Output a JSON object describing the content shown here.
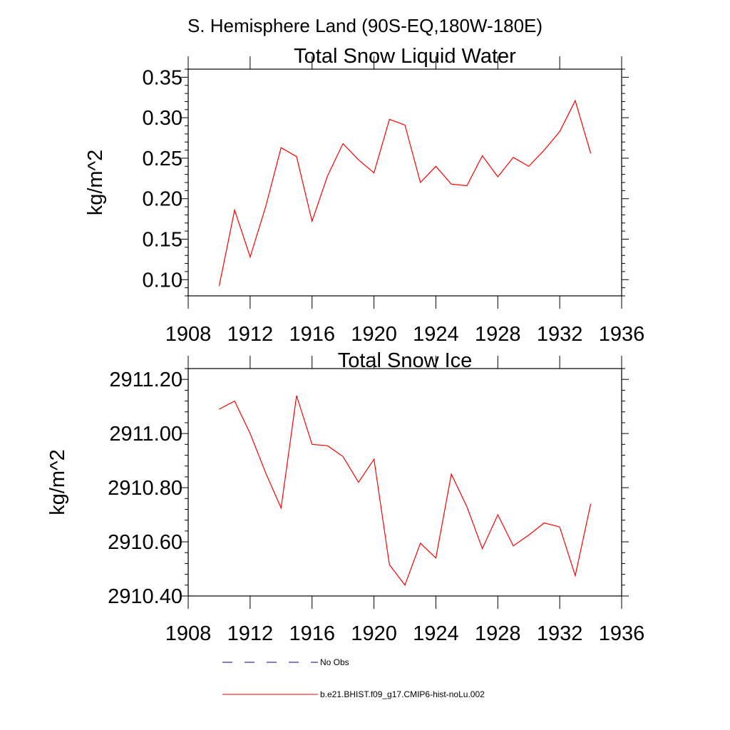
{
  "figure": {
    "suptitle": "S. Hemisphere Land (90S-EQ,180W-180E)"
  },
  "colors": {
    "series": "#ff0000",
    "obs": "#000080",
    "axes": "#000000"
  },
  "legend": {
    "placement": "bottom-center",
    "entries": [
      {
        "label": "No Obs",
        "style": "dashed",
        "color": "#000080"
      },
      {
        "label": "b.e21.BHIST.f09_g17.CMIP6-hist-noLu.002",
        "style": "solid",
        "color": "#ff0000"
      }
    ]
  },
  "chart_data": [
    {
      "type": "line",
      "title": "Total Snow Liquid Water",
      "xlabel": "",
      "ylabel": "kg/m^2",
      "xlim": [
        1908,
        1936
      ],
      "ylim": [
        0.08,
        0.36
      ],
      "xticks": [
        1908,
        1912,
        1916,
        1920,
        1924,
        1928,
        1932,
        1936
      ],
      "xtick_labels": [
        "1908",
        "1912",
        "1916",
        "1920",
        "1924",
        "1928",
        "1932",
        "1936"
      ],
      "yticks": [
        0.1,
        0.15,
        0.2,
        0.25,
        0.3,
        0.35
      ],
      "ytick_labels": [
        "0.10",
        "0.15",
        "0.20",
        "0.25",
        "0.30",
        "0.35"
      ],
      "grid": false,
      "x": [
        1910,
        1911,
        1912,
        1913,
        1914,
        1915,
        1916,
        1917,
        1918,
        1919,
        1920,
        1921,
        1922,
        1923,
        1924,
        1925,
        1926,
        1927,
        1928,
        1929,
        1930,
        1931,
        1932,
        1933,
        1934
      ],
      "series": [
        {
          "name": "b.e21.BHIST.f09_g17.CMIP6-hist-noLu.002",
          "values": [
            0.092,
            0.186,
            0.128,
            0.19,
            0.263,
            0.252,
            0.172,
            0.228,
            0.268,
            0.248,
            0.232,
            0.298,
            0.291,
            0.22,
            0.24,
            0.218,
            0.216,
            0.253,
            0.227,
            0.251,
            0.24,
            0.26,
            0.283,
            0.321,
            0.256
          ]
        }
      ]
    },
    {
      "type": "line",
      "title": "Total Snow Ice",
      "xlabel": "",
      "ylabel": "kg/m^2",
      "xlim": [
        1908,
        1936
      ],
      "ylim": [
        2910.4,
        2911.24
      ],
      "xticks": [
        1908,
        1912,
        1916,
        1920,
        1924,
        1928,
        1932,
        1936
      ],
      "xtick_labels": [
        "1908",
        "1912",
        "1916",
        "1920",
        "1924",
        "1928",
        "1932",
        "1936"
      ],
      "yticks": [
        2910.4,
        2910.6,
        2910.8,
        2911.0,
        2911.2
      ],
      "ytick_labels": [
        "2910.40",
        "2910.60",
        "2910.80",
        "2911.00",
        "2911.20"
      ],
      "grid": false,
      "x": [
        1910,
        1911,
        1912,
        1913,
        1914,
        1915,
        1916,
        1917,
        1918,
        1919,
        1920,
        1921,
        1922,
        1923,
        1924,
        1925,
        1926,
        1927,
        1928,
        1929,
        1930,
        1931,
        1932,
        1933,
        1934
      ],
      "series": [
        {
          "name": "b.e21.BHIST.f09_g17.CMIP6-hist-noLu.002",
          "values": [
            2911.09,
            2911.12,
            2911.0,
            2910.855,
            2910.725,
            2911.14,
            2910.96,
            2910.955,
            2910.915,
            2910.82,
            2910.905,
            2910.515,
            2910.44,
            2910.595,
            2910.54,
            2910.85,
            2910.73,
            2910.575,
            2910.7,
            2910.585,
            2910.625,
            2910.67,
            2910.655,
            2910.475,
            2910.74
          ]
        }
      ]
    }
  ]
}
